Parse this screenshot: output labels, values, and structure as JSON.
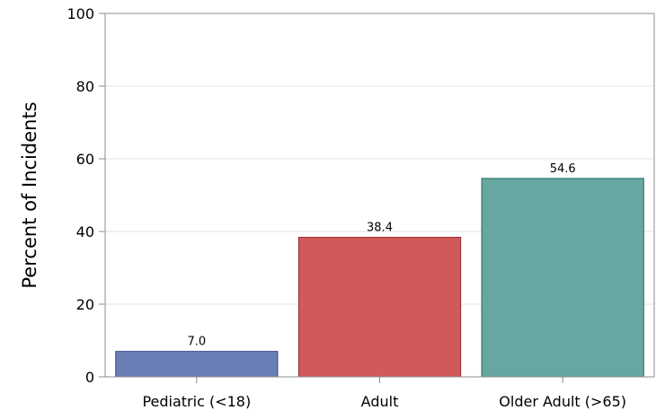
{
  "chart_data": {
    "type": "bar",
    "title": "",
    "xlabel": "",
    "ylabel": "Percent of Incidents",
    "categories": [
      "Pediatric (<18)",
      "Adult",
      "Older Adult (>65)"
    ],
    "values": [
      7.0,
      38.4,
      54.6
    ],
    "value_labels": [
      "7.0",
      "38.4",
      "54.6"
    ],
    "colors": [
      "#6b7db5",
      "#d05a5a",
      "#66a8a1"
    ],
    "edge_colors": [
      "#3a4a85",
      "#9a2e2e",
      "#1f6b5e"
    ],
    "ylim": [
      0,
      100
    ],
    "yticks": [
      0,
      20,
      40,
      60,
      80,
      100
    ],
    "grid": true,
    "legend": "none"
  }
}
